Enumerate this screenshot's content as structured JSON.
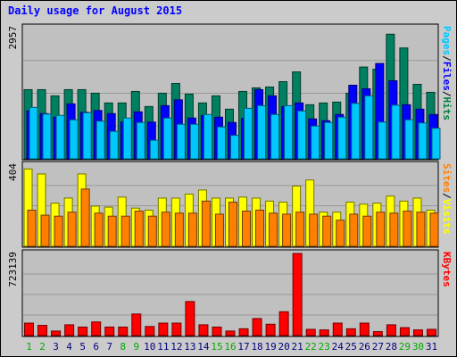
{
  "chart_data": {
    "type": "bar",
    "title": "Daily usage for August 2015",
    "categories": [
      "1",
      "2",
      "3",
      "4",
      "5",
      "6",
      "7",
      "8",
      "9",
      "10",
      "11",
      "12",
      "13",
      "14",
      "15",
      "16",
      "17",
      "18",
      "19",
      "20",
      "21",
      "22",
      "23",
      "24",
      "25",
      "26",
      "27",
      "28",
      "29",
      "30",
      "31"
    ],
    "weekend_days": [
      "1",
      "2",
      "8",
      "9",
      "15",
      "16",
      "22",
      "23",
      "29",
      "30"
    ],
    "legend_right": {
      "panel1": [
        {
          "text": "Pages",
          "color": "#00c8ff"
        },
        {
          "text": "/",
          "color": "#000000"
        },
        {
          "text": "Files",
          "color": "#0000ff"
        },
        {
          "text": "/",
          "color": "#000000"
        },
        {
          "text": "Hits",
          "color": "#008040"
        }
      ],
      "panel2": [
        {
          "text": "Sites",
          "color": "#ff8000"
        },
        {
          "text": "/",
          "color": "#000000"
        },
        {
          "text": "Visits",
          "color": "#ffff00"
        }
      ],
      "panel3": [
        {
          "text": "KBytes",
          "color": "#ff0000"
        }
      ]
    },
    "panels": [
      {
        "ymax_label": "2957",
        "ylim": [
          0,
          2957
        ],
        "series": [
          {
            "name": "Hits",
            "color": "#008060",
            "values": [
              1560,
              1560,
              1420,
              1560,
              1560,
              1480,
              1260,
              1260,
              1520,
              1180,
              1480,
              1700,
              1460,
              1260,
              1420,
              1120,
              1520,
              1600,
              1620,
              1740,
              1960,
              1220,
              1260,
              1280,
              1480,
              2070,
              2020,
              2810,
              2500,
              1680,
              1500
            ]
          },
          {
            "name": "Files",
            "color": "#0000ff",
            "values": [
              1080,
              1020,
              940,
              1240,
              1050,
              1090,
              1020,
              830,
              1060,
              830,
              1200,
              1330,
              920,
              980,
              940,
              820,
              910,
              1560,
              1420,
              1180,
              1260,
              900,
              860,
              1000,
              1660,
              1580,
              2150,
              1760,
              1220,
              1120,
              1000
            ]
          },
          {
            "name": "Pages",
            "color": "#00c8ff",
            "values": [
              1160,
              1010,
              980,
              880,
              1040,
              850,
              620,
              920,
              820,
              420,
              920,
              780,
              780,
              1000,
              720,
              530,
              1140,
              1200,
              1000,
              1200,
              1080,
              740,
              820,
              940,
              1250,
              1420,
              830,
              1210,
              880,
              810,
              690
            ]
          }
        ]
      },
      {
        "ymax_label": "404",
        "ylim": [
          0,
          404
        ],
        "series": [
          {
            "name": "Visits",
            "color": "#ffff00",
            "values": [
              385,
              360,
              215,
              240,
              360,
              200,
              195,
              245,
              190,
              180,
              240,
              240,
              260,
              280,
              240,
              240,
              245,
              240,
              225,
              220,
              300,
              330,
              170,
              170,
              220,
              210,
              215,
              250,
              225,
              240,
              180
            ]
          },
          {
            "name": "Sites",
            "color": "#ff8000",
            "values": [
              180,
              155,
              150,
              170,
              285,
              165,
              150,
              150,
              175,
              150,
              170,
              165,
              165,
              225,
              160,
              220,
              175,
              180,
              165,
              160,
              170,
              160,
              150,
              130,
              160,
              150,
              170,
              165,
              175,
              170,
              165
            ]
          }
        ]
      },
      {
        "ymax_label": "723139",
        "ylim": [
          0,
          723139
        ],
        "series": [
          {
            "name": "KBytes",
            "color": "#ff0000",
            "values": [
              110000,
              90000,
              40000,
              95000,
              75000,
              120000,
              75000,
              75000,
              190000,
              80000,
              110000,
              110000,
              300000,
              95000,
              75000,
              40000,
              60000,
              150000,
              100000,
              210000,
              723000,
              55000,
              50000,
              110000,
              60000,
              110000,
              35000,
              95000,
              70000,
              50000,
              55000
            ]
          }
        ]
      }
    ]
  },
  "colors": {
    "title": "#0000ff",
    "day_label": "#000080",
    "weekend_day_label": "#00aa00",
    "panel_bg": "#c0c0c0",
    "frame_bg": "#cbcbcb"
  }
}
